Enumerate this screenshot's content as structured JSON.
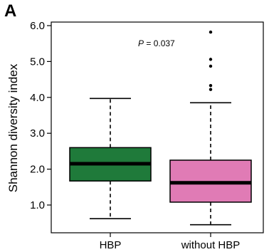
{
  "panel_label": "A",
  "chart_data": {
    "type": "box",
    "ylabel": "Shannon diversity index",
    "xlabel": "",
    "ylim": [
      0.5,
      6.0
    ],
    "yticks": [
      "1.0",
      "2.0",
      "3.0",
      "4.0",
      "5.0",
      "6.0"
    ],
    "annotation": {
      "italic": "P",
      "rest": " = 0.037"
    },
    "groups": [
      {
        "name": "HBP",
        "color": "#1f7a3a",
        "whisker_low": 0.62,
        "q1": 1.67,
        "median": 2.15,
        "q3": 2.6,
        "whisker_high": 3.97,
        "outliers": []
      },
      {
        "name": "without HBP",
        "color": "#e07bb5",
        "whisker_low": 0.45,
        "q1": 1.08,
        "median": 1.62,
        "q3": 2.25,
        "whisker_high": 3.85,
        "outliers": [
          4.22,
          4.33,
          4.87,
          5.06,
          5.82
        ]
      }
    ]
  }
}
